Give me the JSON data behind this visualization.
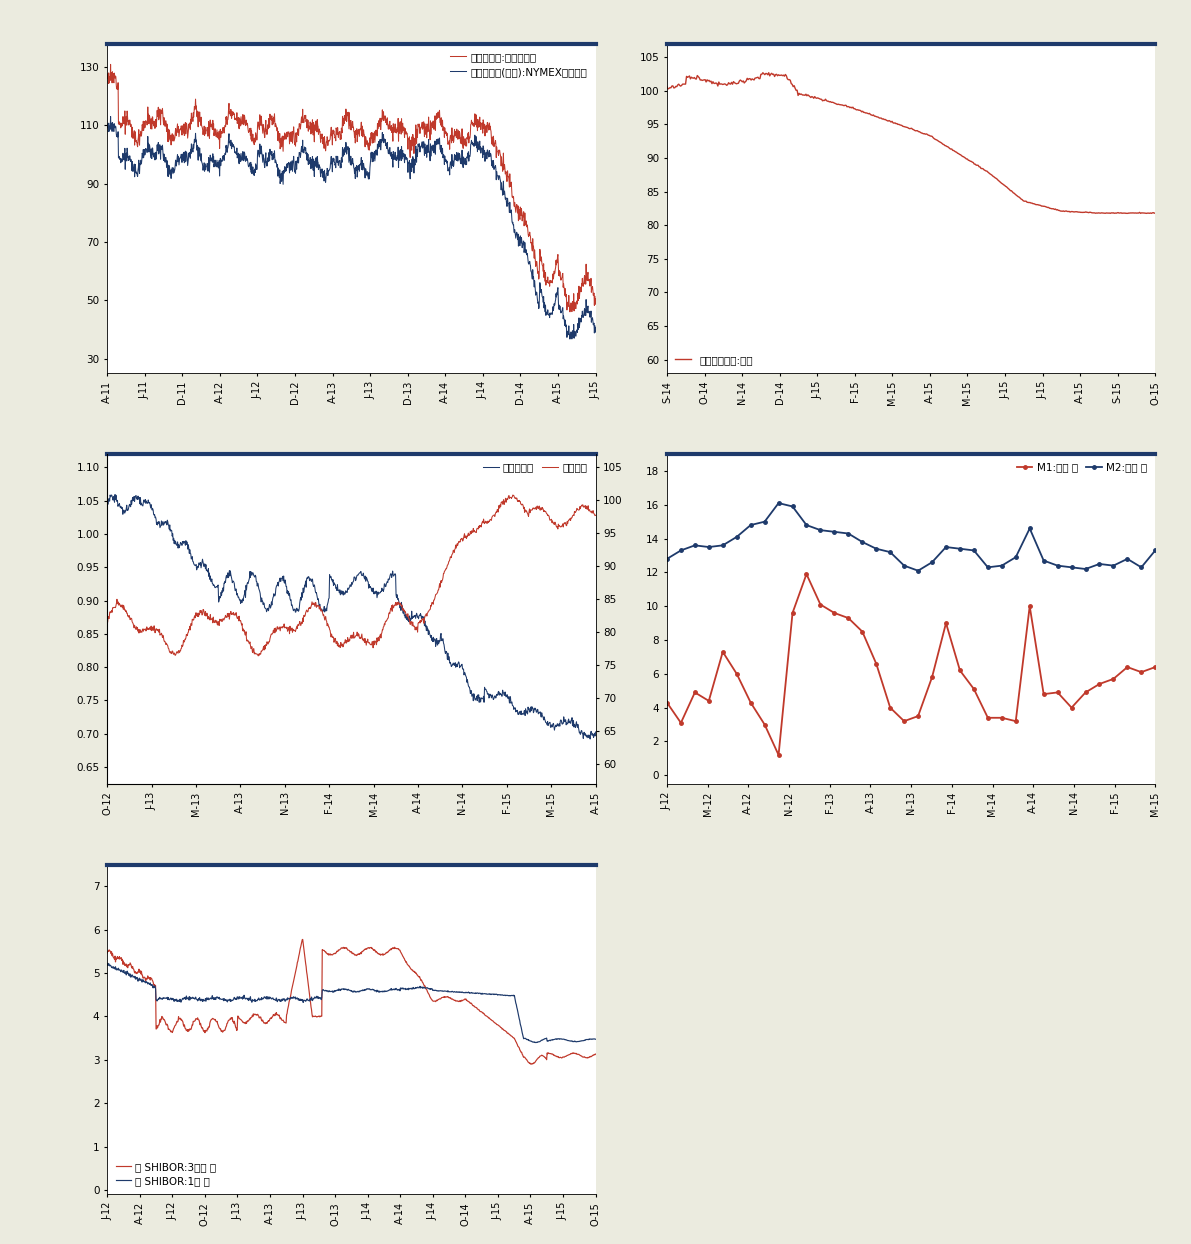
{
  "background_color": "#ebebdf",
  "chart_bg": "#ffffff",
  "border_color": "#1e3a6b",
  "red_color": "#c0392b",
  "blue_color": "#1e3a6b",
  "chart1": {
    "legend1": "期货结算价:布伦特原油",
    "legend2": "期货收盘价(连续):NYMEX轻质原油",
    "xticks": [
      "A-11",
      "J-11",
      "D-11",
      "A-12",
      "J-12",
      "D-12",
      "A-13",
      "J-13",
      "D-13",
      "A-14",
      "J-14",
      "D-14",
      "A-15",
      "J-15"
    ],
    "yticks": [
      30,
      50,
      70,
      90,
      110,
      130
    ],
    "ylim": [
      25,
      138
    ],
    "xlim": [
      0,
      13
    ]
  },
  "chart2": {
    "legend1": "水泥价格指数:全国",
    "xticks": [
      "S-14",
      "O-14",
      "N-14",
      "D-14",
      "J-15",
      "F-15",
      "M-15",
      "A-15",
      "M-15",
      "J-15",
      "J-15",
      "A-15",
      "S-15",
      "O-15"
    ],
    "yticks": [
      60,
      65,
      70,
      75,
      80,
      85,
      90,
      95,
      100,
      105
    ],
    "ylim": [
      58,
      107
    ],
    "xlim": [
      0,
      13
    ]
  },
  "chart3": {
    "legend1": "澳元兑美元",
    "legend2": "美元指数",
    "xticks": [
      "O-12",
      "J-13",
      "M-13",
      "A-13",
      "N-13",
      "F-14",
      "M-14",
      "A-14",
      "N-14",
      "F-15",
      "M-15",
      "A-15"
    ],
    "yticks_left": [
      0.65,
      0.7,
      0.75,
      0.8,
      0.85,
      0.9,
      0.95,
      1.0,
      1.05,
      1.1
    ],
    "yticks_right": [
      60,
      65,
      70,
      75,
      80,
      85,
      90,
      95,
      100,
      105
    ],
    "ylim_left": [
      0.625,
      1.12
    ],
    "ylim_right": [
      57,
      107
    ],
    "xlim": [
      0,
      11
    ]
  },
  "chart4": {
    "legend1": "M1:同比 月",
    "legend2": "M2:同比 月",
    "xticks": [
      "J-12",
      "M-12",
      "A-12",
      "N-12",
      "F-13",
      "A-13",
      "N-13",
      "F-14",
      "M-14",
      "A-14",
      "N-14",
      "F-15",
      "M-15"
    ],
    "yticks": [
      0,
      2,
      4,
      6,
      8,
      10,
      12,
      14,
      16,
      18
    ],
    "ylim": [
      -0.5,
      19
    ],
    "xlim": [
      0,
      12
    ]
  },
  "chart5": {
    "legend1": "日 SHIBOR:3个月 日",
    "legend2": "日 SHIBOR:1年 日",
    "xticks": [
      "J-12",
      "A-12",
      "J-12",
      "O-12",
      "J-13",
      "A-13",
      "J-13",
      "O-13",
      "J-14",
      "A-14",
      "J-14",
      "O-14",
      "J-15",
      "A-15",
      "J-15",
      "O-15"
    ],
    "yticks": [
      0,
      1,
      2,
      3,
      4,
      5,
      6,
      7
    ],
    "ylim": [
      -0.1,
      7.5
    ],
    "xlim": [
      0,
      15
    ]
  }
}
